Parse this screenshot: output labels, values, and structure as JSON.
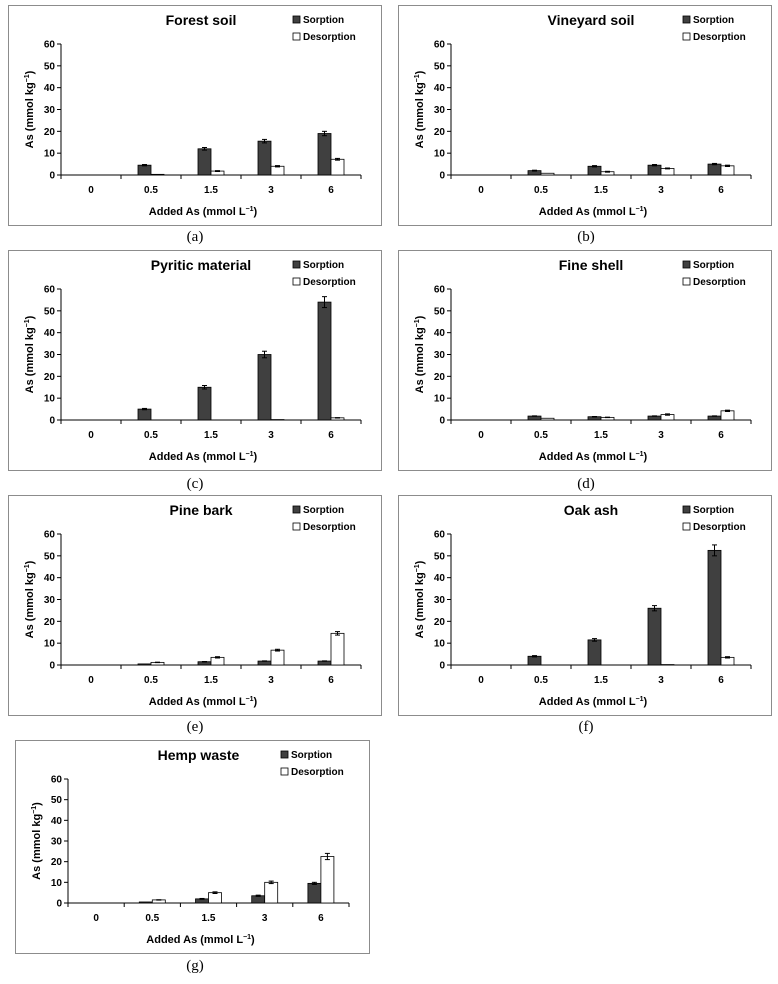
{
  "chart_data": [
    {
      "type": "bar",
      "title": "Forest soil",
      "caption": "(a)",
      "categories": [
        "0",
        "0.5",
        "1.5",
        "3",
        "6"
      ],
      "series": [
        {
          "name": "Sorption",
          "values": [
            0,
            4.5,
            12,
            15.5,
            19
          ],
          "errors": [
            0,
            0.3,
            0.6,
            0.8,
            1
          ]
        },
        {
          "name": "Desorption",
          "values": [
            0,
            0.3,
            1.8,
            4,
            7.2
          ],
          "errors": [
            0,
            0,
            0.2,
            0.3,
            0.4
          ]
        }
      ],
      "xlabel": "Added As (mmol L",
      "xlabel_unit_sup": "−1",
      "xlabel_close": ")",
      "ylabel": "As (mmol kg",
      "ylabel_unit_sup": "−1",
      "ylabel_close": ")",
      "ylim": [
        0,
        60
      ],
      "yticks": [
        0,
        10,
        20,
        30,
        40,
        50,
        60
      ],
      "series_colors": [
        "#404040",
        "#ffffff"
      ],
      "legend": "top-right",
      "grid": false
    },
    {
      "type": "bar",
      "title": "Vineyard soil",
      "caption": "(b)",
      "categories": [
        "0",
        "0.5",
        "1.5",
        "3",
        "6"
      ],
      "series": [
        {
          "name": "Sorption",
          "values": [
            0,
            2,
            4,
            4.5,
            5
          ],
          "errors": [
            0,
            0.2,
            0.3,
            0.3,
            0.3
          ]
        },
        {
          "name": "Desorption",
          "values": [
            0,
            0.8,
            1.5,
            3,
            4.2
          ],
          "errors": [
            0,
            0,
            0.2,
            0.2,
            0.3
          ]
        }
      ],
      "xlabel": "Added As (mmol L",
      "xlabel_unit_sup": "−1",
      "xlabel_close": ")",
      "ylabel": "As (mmol kg",
      "ylabel_unit_sup": "−1",
      "ylabel_close": ")",
      "ylim": [
        0,
        60
      ],
      "yticks": [
        0,
        10,
        20,
        30,
        40,
        50,
        60
      ],
      "series_colors": [
        "#404040",
        "#ffffff"
      ],
      "legend": "top-right",
      "grid": false
    },
    {
      "type": "bar",
      "title": "Pyritic material",
      "caption": "(c)",
      "categories": [
        "0",
        "0.5",
        "1.5",
        "3",
        "6"
      ],
      "series": [
        {
          "name": "Sorption",
          "values": [
            0,
            5,
            15,
            30,
            54
          ],
          "errors": [
            0,
            0.3,
            0.8,
            1.5,
            2.5
          ]
        },
        {
          "name": "Desorption",
          "values": [
            0,
            0,
            0,
            0.2,
            1
          ],
          "errors": [
            0,
            0,
            0,
            0,
            0.1
          ]
        }
      ],
      "xlabel": "Added As (mmol L",
      "xlabel_unit_sup": "−1",
      "xlabel_close": ")",
      "ylabel": "As (mmol kg",
      "ylabel_unit_sup": "−1",
      "ylabel_close": ")",
      "ylim": [
        0,
        60
      ],
      "yticks": [
        0,
        10,
        20,
        30,
        40,
        50,
        60
      ],
      "series_colors": [
        "#404040",
        "#ffffff"
      ],
      "legend": "top-right",
      "grid": false
    },
    {
      "type": "bar",
      "title": "Fine shell",
      "caption": "(d)",
      "categories": [
        "0",
        "0.5",
        "1.5",
        "3",
        "6"
      ],
      "series": [
        {
          "name": "Sorption",
          "values": [
            0,
            1.8,
            1.5,
            1.8,
            1.8
          ],
          "errors": [
            0,
            0.1,
            0.1,
            0.1,
            0.1
          ]
        },
        {
          "name": "Desorption",
          "values": [
            0,
            0.8,
            1.2,
            2.5,
            4.2
          ],
          "errors": [
            0,
            0,
            0.1,
            0.3,
            0.3
          ]
        }
      ],
      "xlabel": "Added As (mmol L",
      "xlabel_unit_sup": "−1",
      "xlabel_close": ")",
      "ylabel": "As (mmol kg",
      "ylabel_unit_sup": "−1",
      "ylabel_close": ")",
      "ylim": [
        0,
        60
      ],
      "yticks": [
        0,
        10,
        20,
        30,
        40,
        50,
        60
      ],
      "series_colors": [
        "#404040",
        "#ffffff"
      ],
      "legend": "top-right",
      "grid": false
    },
    {
      "type": "bar",
      "title": "Pine bark",
      "caption": "(e)",
      "categories": [
        "0",
        "0.5",
        "1.5",
        "3",
        "6"
      ],
      "series": [
        {
          "name": "Sorption",
          "values": [
            0,
            0.5,
            1.5,
            1.8,
            1.8
          ],
          "errors": [
            0,
            0,
            0.1,
            0.1,
            0.1
          ]
        },
        {
          "name": "Desorption",
          "values": [
            0,
            1.2,
            3.5,
            6.8,
            14.5
          ],
          "errors": [
            0,
            0.1,
            0.3,
            0.4,
            0.8
          ]
        }
      ],
      "xlabel": "Added As (mmol L",
      "xlabel_unit_sup": "−1",
      "xlabel_close": ")",
      "ylabel": "As (mmol kg",
      "ylabel_unit_sup": "−1",
      "ylabel_close": ")",
      "ylim": [
        0,
        60
      ],
      "yticks": [
        0,
        10,
        20,
        30,
        40,
        50,
        60
      ],
      "series_colors": [
        "#404040",
        "#ffffff"
      ],
      "legend": "top-right",
      "grid": false
    },
    {
      "type": "bar",
      "title": "Oak ash",
      "caption": "(f)",
      "categories": [
        "0",
        "0.5",
        "1.5",
        "3",
        "6"
      ],
      "series": [
        {
          "name": "Sorption",
          "values": [
            0,
            4,
            11.5,
            26,
            52.5
          ],
          "errors": [
            0,
            0.3,
            0.6,
            1.2,
            2.5
          ]
        },
        {
          "name": "Desorption",
          "values": [
            0,
            0,
            0,
            0.2,
            3.5
          ],
          "errors": [
            0,
            0,
            0,
            0,
            0.3
          ]
        }
      ],
      "xlabel": "Added As (mmol L",
      "xlabel_unit_sup": "−1",
      "xlabel_close": ")",
      "ylabel": "As (mmol kg",
      "ylabel_unit_sup": "−1",
      "ylabel_close": ")",
      "ylim": [
        0,
        60
      ],
      "yticks": [
        0,
        10,
        20,
        30,
        40,
        50,
        60
      ],
      "series_colors": [
        "#404040",
        "#ffffff"
      ],
      "legend": "top-right",
      "grid": false
    },
    {
      "type": "bar",
      "title": "Hemp waste",
      "caption": "(g)",
      "categories": [
        "0",
        "0.5",
        "1.5",
        "3",
        "6"
      ],
      "series": [
        {
          "name": "Sorption",
          "values": [
            0,
            0.5,
            2,
            3.5,
            9.5
          ],
          "errors": [
            0,
            0,
            0.2,
            0.3,
            0.5
          ]
        },
        {
          "name": "Desorption",
          "values": [
            0,
            1.5,
            5,
            10,
            22.5
          ],
          "errors": [
            0,
            0.1,
            0.4,
            0.6,
            1.5
          ]
        }
      ],
      "xlabel": "Added As (mmol L",
      "xlabel_unit_sup": "−1",
      "xlabel_close": ")",
      "ylabel": "As (mmol kg",
      "ylabel_unit_sup": "−1",
      "ylabel_close": ")",
      "ylim": [
        0,
        60
      ],
      "yticks": [
        0,
        10,
        20,
        30,
        40,
        50,
        60
      ],
      "series_colors": [
        "#404040",
        "#ffffff"
      ],
      "legend": "top-right",
      "grid": false
    }
  ]
}
